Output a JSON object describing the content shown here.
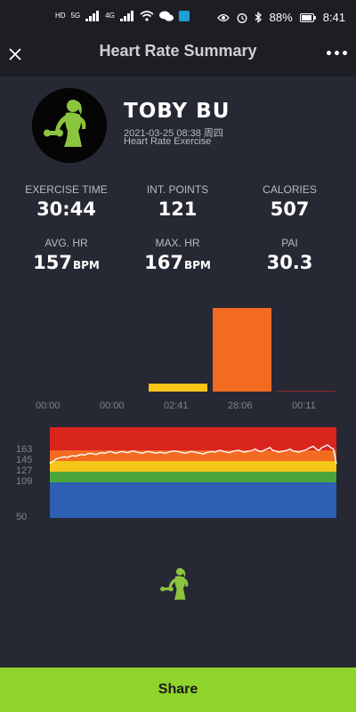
{
  "status_bar": {
    "battery": "88%",
    "time": "8:41",
    "net_a": "5G",
    "net_b": "4G",
    "hd": "HD"
  },
  "header": {
    "title": "Heart Rate Summary"
  },
  "profile": {
    "name": "TOBY BU",
    "date": "2021-03-25 08:38 周四",
    "exercise_type": "Heart Rate Exercise"
  },
  "stats": [
    {
      "label": "EXERCISE TIME",
      "value": "30:44",
      "unit": ""
    },
    {
      "label": "INT. POINTS",
      "value": "121",
      "unit": ""
    },
    {
      "label": "CALORIES",
      "value": "507",
      "unit": ""
    },
    {
      "label": "AVG. HR",
      "value": "157",
      "unit": "BPM"
    },
    {
      "label": "MAX. HR",
      "value": "167",
      "unit": "BPM"
    },
    {
      "label": "PAI",
      "value": "30.3",
      "unit": ""
    }
  ],
  "chart_data": [
    {
      "type": "bar",
      "categories": [
        "00:00",
        "00:00",
        "02:41",
        "28:06",
        "00:11"
      ],
      "values": [
        0,
        0,
        2.68,
        28.1,
        0.18
      ],
      "colors": [
        "#2d5fb3",
        "#4aa53b",
        "#f5c518",
        "#f26b21",
        "#d9251d"
      ],
      "title": "",
      "xlabel": "",
      "ylabel": "",
      "ylim": [
        0,
        30.5
      ]
    },
    {
      "type": "line",
      "title": "",
      "xlabel": "",
      "ylabel": "",
      "ylim": [
        50,
        180
      ],
      "zones": [
        {
          "from": 163,
          "to": 180,
          "color": "#d9251d"
        },
        {
          "from": 145,
          "to": 163,
          "color": "#f26b21"
        },
        {
          "from": 127,
          "to": 145,
          "color": "#f5c518"
        },
        {
          "from": 109,
          "to": 127,
          "color": "#4aa53b"
        },
        {
          "from": 50,
          "to": 109,
          "color": "#2d5fb3"
        }
      ],
      "tick_labels": [
        "163",
        "145",
        "127",
        "109",
        "50"
      ],
      "series": [
        {
          "values": [
            141,
            144,
            148,
            150,
            151,
            152,
            151,
            153,
            154,
            153,
            155,
            156,
            155,
            157,
            158,
            157,
            156,
            158,
            159,
            158,
            160,
            161,
            159,
            158,
            160,
            161,
            160,
            159,
            161,
            162,
            160,
            159,
            158,
            160,
            161,
            160,
            159,
            158,
            160,
            159,
            158,
            160,
            161,
            162,
            161,
            160,
            159,
            158,
            160,
            161,
            160,
            159,
            158,
            157,
            159,
            160,
            161,
            160,
            162,
            163,
            161,
            160,
            159,
            161,
            162,
            163,
            162,
            160,
            161,
            162,
            163,
            164,
            162,
            161,
            163,
            164,
            165,
            163,
            162,
            160,
            161,
            162,
            163,
            164,
            162,
            161,
            160,
            162,
            163,
            164,
            165,
            166,
            164,
            163,
            165,
            166,
            167,
            165,
            164,
            140
          ]
        }
      ]
    }
  ],
  "share_label": "Share"
}
